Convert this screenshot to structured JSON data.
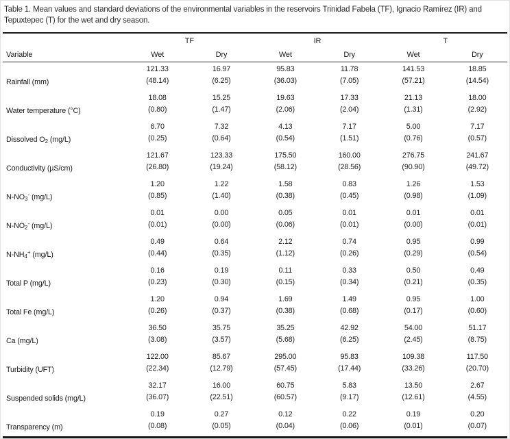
{
  "title": "Table 1. Mean values and standard deviations of the environmental variables in the reservoirs Trinidad Fabela (TF), Ignacio Ramírez (IR) and Tepuxtepec (T) for the wet and dry season.",
  "table": {
    "variable_header": "Variable",
    "groups": [
      "TF",
      "IR",
      "T"
    ],
    "season_headers": [
      "Wet",
      "Dry",
      "Wet",
      "Dry",
      "Wet",
      "Dry"
    ],
    "rows": [
      {
        "label": {
          "pre": "Rainfall (mm)",
          "sub": "",
          "sup": "",
          "post": ""
        },
        "means": [
          "121.33",
          "16.97",
          "95.83",
          "11.78",
          "141.53",
          "18.85"
        ],
        "sds": [
          "(48.14)",
          "(6.25)",
          "(36.03)",
          "(7.05)",
          "(57.21)",
          "(14.54)"
        ]
      },
      {
        "label": {
          "pre": "Water temperature (°C)",
          "sub": "",
          "sup": "",
          "post": ""
        },
        "means": [
          "18.08",
          "15.25",
          "19.63",
          "17.33",
          "21.13",
          "18.00"
        ],
        "sds": [
          "(0.80)",
          "(1.47)",
          "(2.06)",
          "(2.04)",
          "(1.31)",
          "(2.92)"
        ]
      },
      {
        "label": {
          "pre": "Dissolved O",
          "sub": "2",
          "sup": "",
          "post": " (mg/L)"
        },
        "means": [
          "6.70",
          "7.32",
          "4.13",
          "7.17",
          "5.00",
          "7.17"
        ],
        "sds": [
          "(0.25)",
          "(0.64)",
          "(0.54)",
          "(1.51)",
          "(0.76)",
          "(0.57)"
        ]
      },
      {
        "label": {
          "pre": "Conductivity (µS/cm)",
          "sub": "",
          "sup": "",
          "post": ""
        },
        "means": [
          "121.67",
          "123.33",
          "175.50",
          "160.00",
          "276.75",
          "241.67"
        ],
        "sds": [
          "(26.80)",
          "(19.24)",
          "(58.12)",
          "(28.56)",
          "(90.90)",
          "(49.72)"
        ]
      },
      {
        "label": {
          "pre": "N-NO",
          "sub": "3",
          "sup": "-",
          "post": " (mg/L)"
        },
        "means": [
          "1.20",
          "1.22",
          "1.58",
          "0.83",
          "1.26",
          "1.53"
        ],
        "sds": [
          "(0.85)",
          "(1.40)",
          "(0.38)",
          "(0.45)",
          "(0.98)",
          "(1.09)"
        ]
      },
      {
        "label": {
          "pre": "N-NO",
          "sub": "2",
          "sup": "-",
          "post": " (mg/L)"
        },
        "means": [
          "0.01",
          "0.00",
          "0.05",
          "0.01",
          "0.01",
          "0.01"
        ],
        "sds": [
          "(0.01)",
          "(0.00)",
          "(0.06)",
          "(0.01)",
          "(0.00)",
          "(0.01)"
        ]
      },
      {
        "label": {
          "pre": "N-NH",
          "sub": "4",
          "sup": "+",
          "post": " (mg/L)"
        },
        "means": [
          "0.49",
          "0.64",
          "2.12",
          "0.74",
          "0.95",
          "0.99"
        ],
        "sds": [
          "(0.44)",
          "(0.35)",
          "(1.12)",
          "(0.26)",
          "(0.29)",
          "(0.54)"
        ]
      },
      {
        "label": {
          "pre": "Total P (mg/L)",
          "sub": "",
          "sup": "",
          "post": ""
        },
        "means": [
          "0.16",
          "0.19",
          "0.11",
          "0.33",
          "0.50",
          "0.49"
        ],
        "sds": [
          "(0.23)",
          "(0.30)",
          "(0.15)",
          "(0.34)",
          "(0.21)",
          "(0.35)"
        ]
      },
      {
        "label": {
          "pre": "Total Fe (mg/L)",
          "sub": "",
          "sup": "",
          "post": ""
        },
        "means": [
          "1.20",
          "0.94",
          "1.69",
          "1.49",
          "0.95",
          "1.00"
        ],
        "sds": [
          "(0.26)",
          "(0.37)",
          "(0.38)",
          "(0.68)",
          "(0.17)",
          "(0.60)"
        ]
      },
      {
        "label": {
          "pre": "Ca (mg/L)",
          "sub": "",
          "sup": "",
          "post": ""
        },
        "means": [
          "36.50",
          "35.75",
          "35.25",
          "42.92",
          "54.00",
          "51.17"
        ],
        "sds": [
          "(3.08)",
          "(3.57)",
          "(5.68)",
          "(6.25)",
          "(2.45)",
          "(8.75)"
        ]
      },
      {
        "label": {
          "pre": "Turbidity (UFT)",
          "sub": "",
          "sup": "",
          "post": ""
        },
        "means": [
          "122.00",
          "85.67",
          "295.00",
          "95.83",
          "109.38",
          "117.50"
        ],
        "sds": [
          "(22.34)",
          "(12.79)",
          "(57.45)",
          "(17.44)",
          "(33.26)",
          "(20.70)"
        ]
      },
      {
        "label": {
          "pre": "Suspended solids (mg/L)",
          "sub": "",
          "sup": "",
          "post": ""
        },
        "means": [
          "32.17",
          "16.00",
          "60.75",
          "5.83",
          "13.50",
          "2.67"
        ],
        "sds": [
          "(36.07)",
          "(22.51)",
          "(60.57)",
          "(9.17)",
          "(12.61)",
          "(4.55)"
        ]
      },
      {
        "label": {
          "pre": "Transparency (m)",
          "sub": "",
          "sup": "",
          "post": ""
        },
        "means": [
          "0.19",
          "0.27",
          "0.12",
          "0.22",
          "0.19",
          "0.20"
        ],
        "sds": [
          "(0.08)",
          "(0.05)",
          "(0.04)",
          "(0.06)",
          "(0.01)",
          "(0.07)"
        ]
      }
    ]
  },
  "colors": {
    "text": "#1a1a1a",
    "rule": "#181818",
    "background": "#ffffff"
  }
}
